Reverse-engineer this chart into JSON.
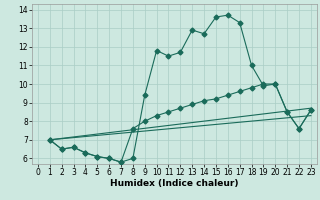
{
  "xlabel": "Humidex (Indice chaleur)",
  "bg_color": "#cde8e0",
  "grid_color": "#aacec6",
  "line_color": "#1a6b5a",
  "xlim": [
    -0.5,
    23.5
  ],
  "ylim": [
    5.7,
    14.3
  ],
  "xticks": [
    0,
    1,
    2,
    3,
    4,
    5,
    6,
    7,
    8,
    9,
    10,
    11,
    12,
    13,
    14,
    15,
    16,
    17,
    18,
    19,
    20,
    21,
    22,
    23
  ],
  "yticks": [
    6,
    7,
    8,
    9,
    10,
    11,
    12,
    13,
    14
  ],
  "curve1_x": [
    1,
    2,
    3,
    4,
    5,
    6,
    7,
    8,
    9,
    10,
    11,
    12,
    13,
    14,
    15,
    16,
    17,
    18,
    19,
    20,
    21,
    22,
    23
  ],
  "curve1_y": [
    7.0,
    6.5,
    6.6,
    6.3,
    6.1,
    6.0,
    5.8,
    6.0,
    9.4,
    11.8,
    11.5,
    11.7,
    12.9,
    12.7,
    13.6,
    13.7,
    13.3,
    11.0,
    9.9,
    10.0,
    8.5,
    7.6,
    8.6
  ],
  "curve2_x": [
    1,
    2,
    3,
    4,
    5,
    6,
    7,
    8,
    9,
    10,
    11,
    12,
    13,
    14,
    15,
    16,
    17,
    18,
    19,
    20,
    21,
    22,
    23
  ],
  "curve2_y": [
    7.0,
    6.5,
    6.6,
    6.3,
    6.1,
    6.0,
    5.8,
    7.6,
    8.0,
    8.3,
    8.5,
    8.7,
    8.9,
    9.1,
    9.2,
    9.4,
    9.6,
    9.8,
    10.0,
    10.0,
    8.5,
    7.6,
    8.6
  ],
  "line3_x": [
    1,
    23
  ],
  "line3_y": [
    7.0,
    8.7
  ],
  "line4_x": [
    1,
    23
  ],
  "line4_y": [
    7.0,
    8.3
  ]
}
